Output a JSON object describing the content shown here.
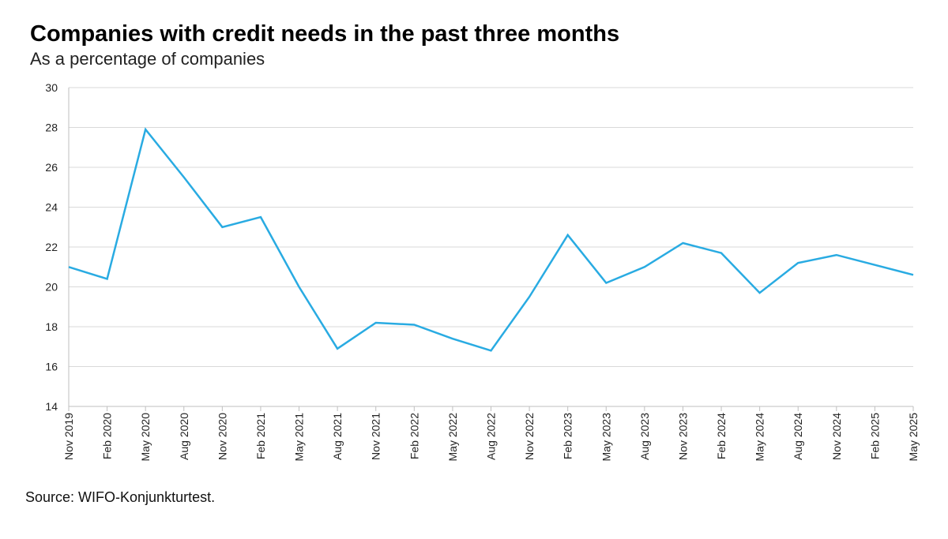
{
  "header": {
    "title": "Companies with credit needs in the past three months",
    "subtitle": "As a percentage of companies"
  },
  "footer": {
    "source": "Source: WIFO-Konjunkturtest."
  },
  "colors": {
    "series": "#29abe2",
    "grid": "#d9d9d9",
    "axis": "#bfbfbf"
  },
  "chart_data": {
    "type": "line",
    "title": "Companies with credit needs in the past three months",
    "subtitle": "As a percentage of companies",
    "xlabel": "",
    "ylabel": "",
    "ylim": [
      14,
      30
    ],
    "yticks": [
      14,
      16,
      18,
      20,
      22,
      24,
      26,
      28,
      30
    ],
    "grid": true,
    "legend": "none",
    "categories": [
      "Nov 2019",
      "Feb 2020",
      "May 2020",
      "Aug 2020",
      "Nov 2020",
      "Feb 2021",
      "May 2021",
      "Aug 2021",
      "Nov 2021",
      "Feb 2022",
      "May 2022",
      "Aug 2022",
      "Nov 2022",
      "Feb 2023",
      "May 2023",
      "Aug 2023",
      "Nov 2023",
      "Feb 2024",
      "May 2024",
      "Aug 2024",
      "Nov 2024",
      "Feb 2025",
      "May 2025"
    ],
    "series": [
      {
        "values": [
          21.0,
          20.4,
          27.9,
          25.5,
          23.0,
          23.5,
          20.0,
          16.9,
          18.2,
          18.1,
          17.4,
          16.8,
          19.5,
          22.6,
          20.2,
          21.0,
          22.2,
          21.7,
          19.7,
          21.2,
          21.6,
          21.1,
          20.6
        ]
      }
    ]
  }
}
